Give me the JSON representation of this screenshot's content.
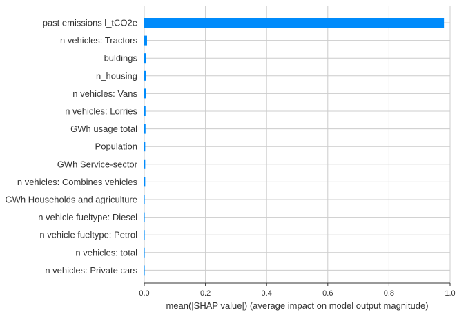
{
  "chart_data": {
    "type": "bar",
    "orientation": "horizontal",
    "categories": [
      "past emissions l_tCO2e",
      "n vehicles: Tractors",
      "buldings",
      "n_housing",
      "n vehicles: Vans",
      "n vehicles: Lorries",
      "GWh usage total",
      "Population",
      "GWh Service-sector",
      "n vehicles: Combines vehicles",
      "GWh Households and agriculture",
      "n vehicle fueltype: Diesel",
      "n vehicle fueltype: Petrol",
      "n vehicles: total",
      "n vehicles: Private cars"
    ],
    "values": [
      0.98,
      0.009,
      0.006,
      0.005,
      0.005,
      0.004,
      0.004,
      0.003,
      0.003,
      0.003,
      0.001,
      0.001,
      0.001,
      0.001,
      0.001
    ],
    "title": "",
    "xlabel": "mean(|SHAP value|) (average impact on model output magnitude)",
    "ylabel": "",
    "xlim": [
      0,
      1.0
    ],
    "xticks": [
      "0.0",
      "0.2",
      "0.4",
      "0.6",
      "0.8",
      "1.0"
    ],
    "grid": true,
    "bar_color": "#008bfb",
    "grid_color": "#cccccc",
    "label_color": "#333333"
  }
}
